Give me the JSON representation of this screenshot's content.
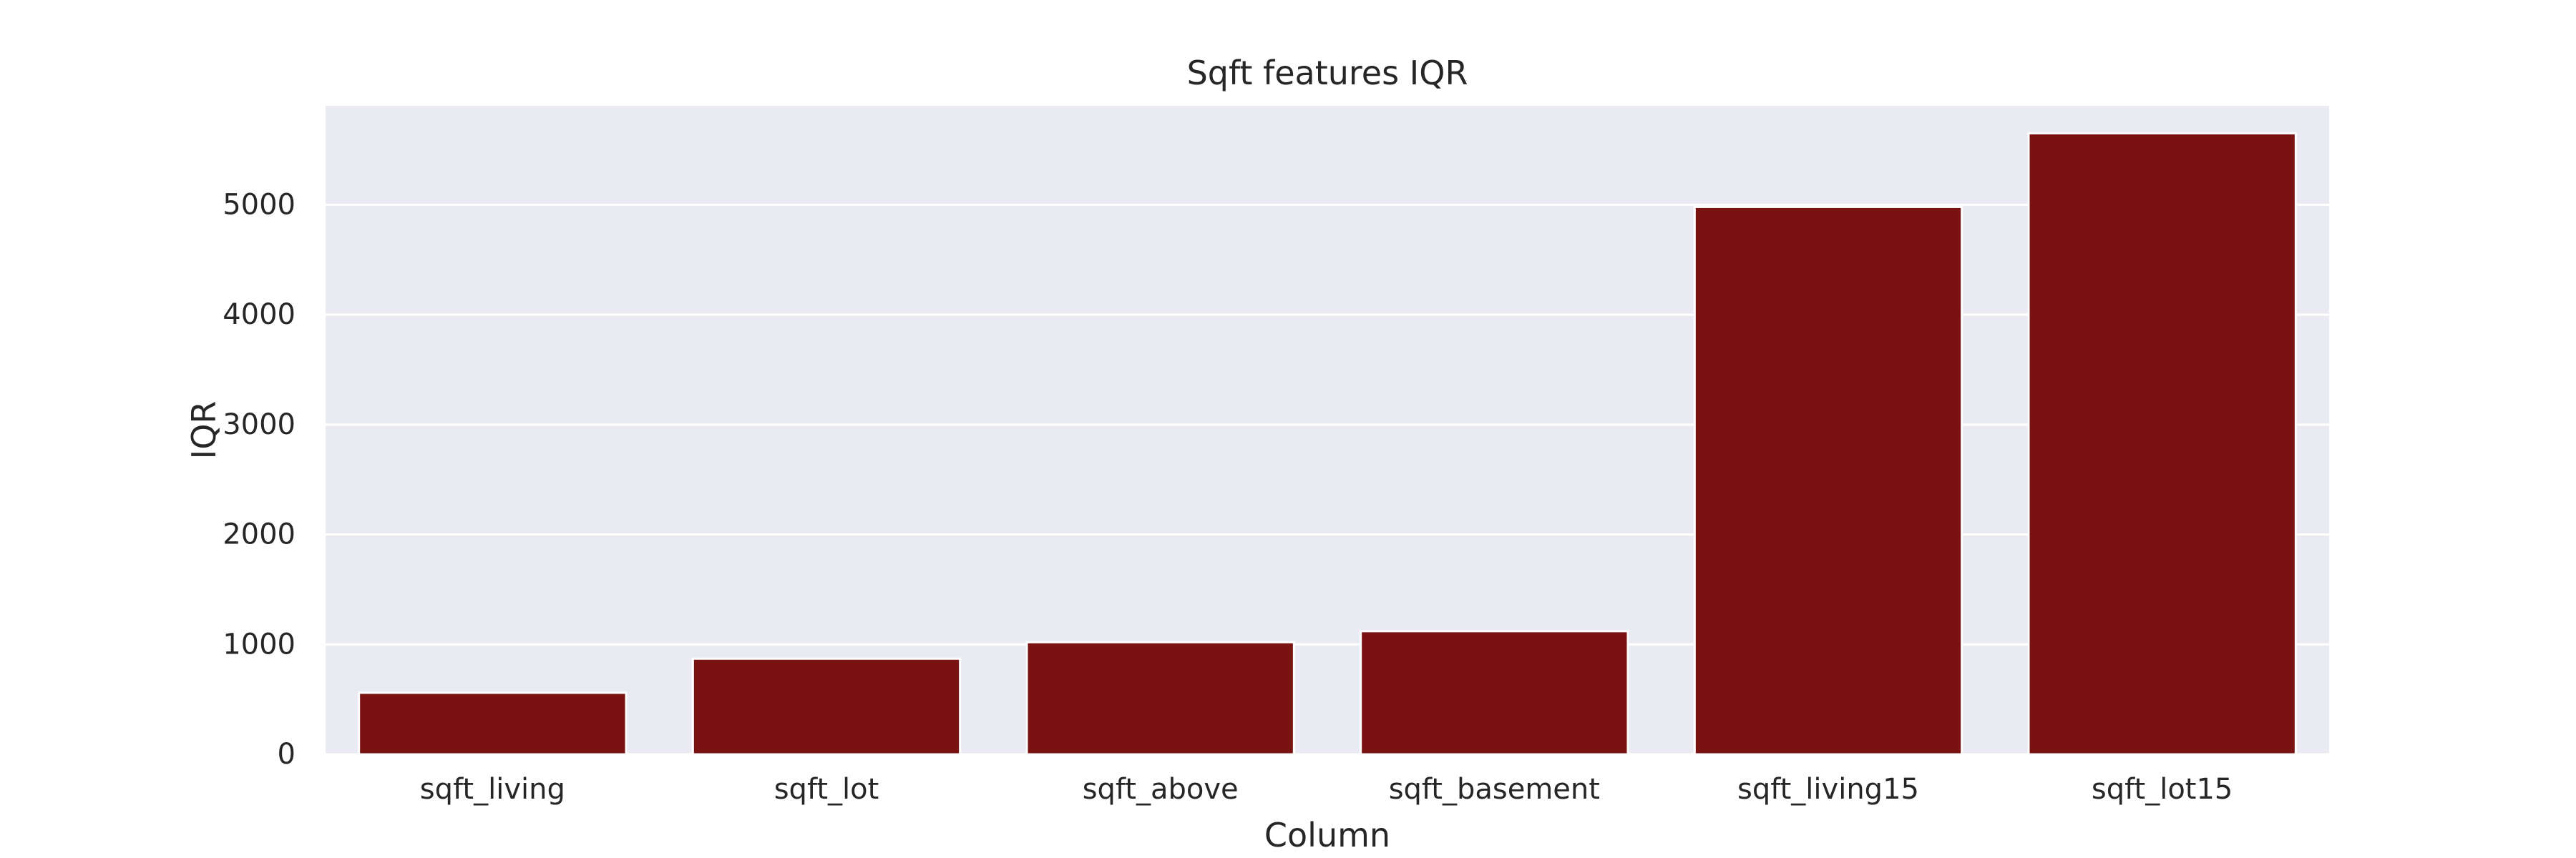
{
  "chart_data": {
    "type": "bar",
    "title": "Sqft features IQR",
    "xlabel": "Column",
    "ylabel": "IQR",
    "categories": [
      "sqft_living",
      "sqft_lot",
      "sqft_above",
      "sqft_basement",
      "sqft_living15",
      "sqft_lot15"
    ],
    "values": [
      560,
      870,
      1020,
      1120,
      4980,
      5650
    ],
    "ylim": [
      0,
      5900
    ],
    "yticks": [
      0,
      1000,
      2000,
      3000,
      4000,
      5000
    ],
    "ytick_labels": [
      "0",
      "1000",
      "2000",
      "3000",
      "4000",
      "5000"
    ],
    "grid": true,
    "legend": "none",
    "colors": {
      "bar": "#7a1212",
      "plot_background": "#eaeaf2",
      "grid": "#ffffff",
      "text": "#262626"
    }
  }
}
